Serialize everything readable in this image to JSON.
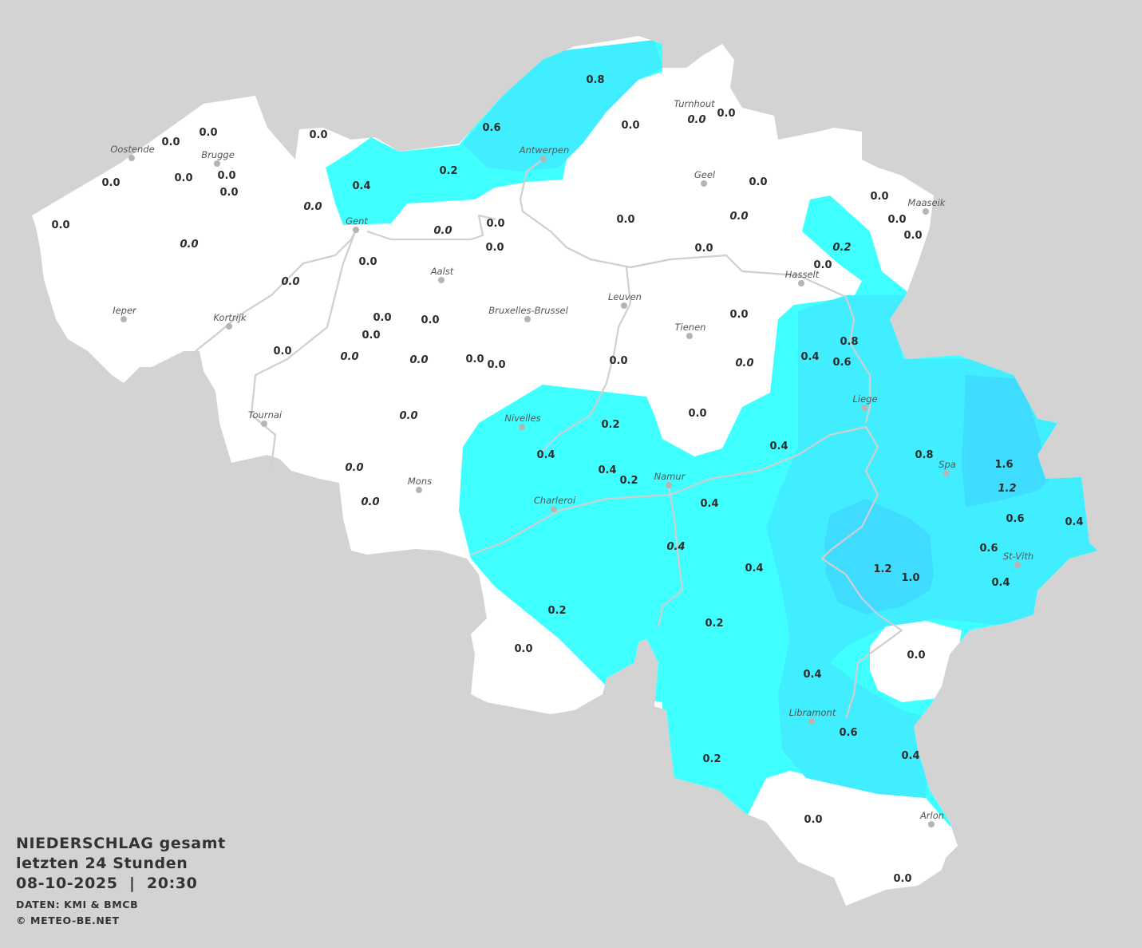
{
  "legend": {
    "title_line1": "NIEDERSCHLAG gesamt",
    "title_line2": "letzten 24 Stunden",
    "datetime": "08-10-2025  |  20:30",
    "source": "DATEN: KMI & BMCB",
    "copyright": "© METEO-BE.NET"
  },
  "colors": {
    "background": "#d3d3d3",
    "land_no_precip": "#ffffff",
    "precip_low": "#40ffff",
    "precip_mid": "#40eeff",
    "precip_high": "#40dcff",
    "river": "#cfcfcf",
    "text": "#2b2b2b"
  },
  "cities": [
    "Oostende",
    "Brugge",
    "Gent",
    "Antwerpen",
    "Turnhout",
    "Geel",
    "Maaseik",
    "Hasselt",
    "Aalst",
    "Bruxelles-Brussel",
    "Leuven",
    "Tienen",
    "Ieper",
    "Kortrijk",
    "Tournai",
    "Liege",
    "Nivelles",
    "Namur",
    "Charleroi",
    "Mons",
    "Spa",
    "St-Vith",
    "Libramont",
    "Arlon"
  ],
  "values": [
    {
      "v": "0.0"
    },
    {
      "v": "0.0"
    },
    {
      "v": "0.0"
    },
    {
      "v": "0.0"
    },
    {
      "v": "0.0"
    },
    {
      "v": "0.0"
    },
    {
      "v": "0.0"
    },
    {
      "v": "0.0",
      "italic": true
    },
    {
      "v": "0.0"
    },
    {
      "v": "0.0",
      "italic": true
    },
    {
      "v": "0.4"
    },
    {
      "v": "0.2"
    },
    {
      "v": "0.6"
    },
    {
      "v": "0.8"
    },
    {
      "v": "0.0"
    },
    {
      "v": "0.0",
      "italic": true
    },
    {
      "v": "0.0"
    },
    {
      "v": "0.0"
    },
    {
      "v": "0.0"
    },
    {
      "v": "0.0",
      "italic": true
    },
    {
      "v": "0.0"
    },
    {
      "v": "0.2",
      "italic": true
    },
    {
      "v": "0.0"
    },
    {
      "v": "0.0"
    },
    {
      "v": "0.0"
    },
    {
      "v": "0.0"
    },
    {
      "v": "0.0"
    },
    {
      "v": "0.0"
    },
    {
      "v": "0.0",
      "italic": true
    },
    {
      "v": "0.0"
    },
    {
      "v": "0.0",
      "italic": true
    },
    {
      "v": "0.0"
    },
    {
      "v": "0.0"
    },
    {
      "v": "0.0"
    },
    {
      "v": "0.0"
    },
    {
      "v": "0.0",
      "italic": true
    },
    {
      "v": "0.0",
      "italic": true
    },
    {
      "v": "0.0"
    },
    {
      "v": "0.0"
    },
    {
      "v": "0.0"
    },
    {
      "v": "0.0"
    },
    {
      "v": "0.0",
      "italic": true
    },
    {
      "v": "0.4"
    },
    {
      "v": "0.8"
    },
    {
      "v": "0.6"
    },
    {
      "v": "0.0"
    },
    {
      "v": "0.0",
      "italic": true
    },
    {
      "v": "0.2"
    },
    {
      "v": "0.4"
    },
    {
      "v": "0.4"
    },
    {
      "v": "0.2"
    },
    {
      "v": "0.4"
    },
    {
      "v": "0.4"
    },
    {
      "v": "0.0",
      "italic": true
    },
    {
      "v": "0.0",
      "italic": true
    },
    {
      "v": "0.4",
      "italic": true
    },
    {
      "v": "0.4"
    },
    {
      "v": "0.2"
    },
    {
      "v": "0.2"
    },
    {
      "v": "0.0"
    },
    {
      "v": "0.8"
    },
    {
      "v": "1.6"
    },
    {
      "v": "1.2",
      "italic": true
    },
    {
      "v": "0.6"
    },
    {
      "v": "0.4"
    },
    {
      "v": "0.6"
    },
    {
      "v": "0.4"
    },
    {
      "v": "1.2"
    },
    {
      "v": "1.0"
    },
    {
      "v": "0.0"
    },
    {
      "v": "0.4"
    },
    {
      "v": "0.6"
    },
    {
      "v": "0.4"
    },
    {
      "v": "0.2"
    },
    {
      "v": "0.0"
    },
    {
      "v": "0.0"
    }
  ]
}
